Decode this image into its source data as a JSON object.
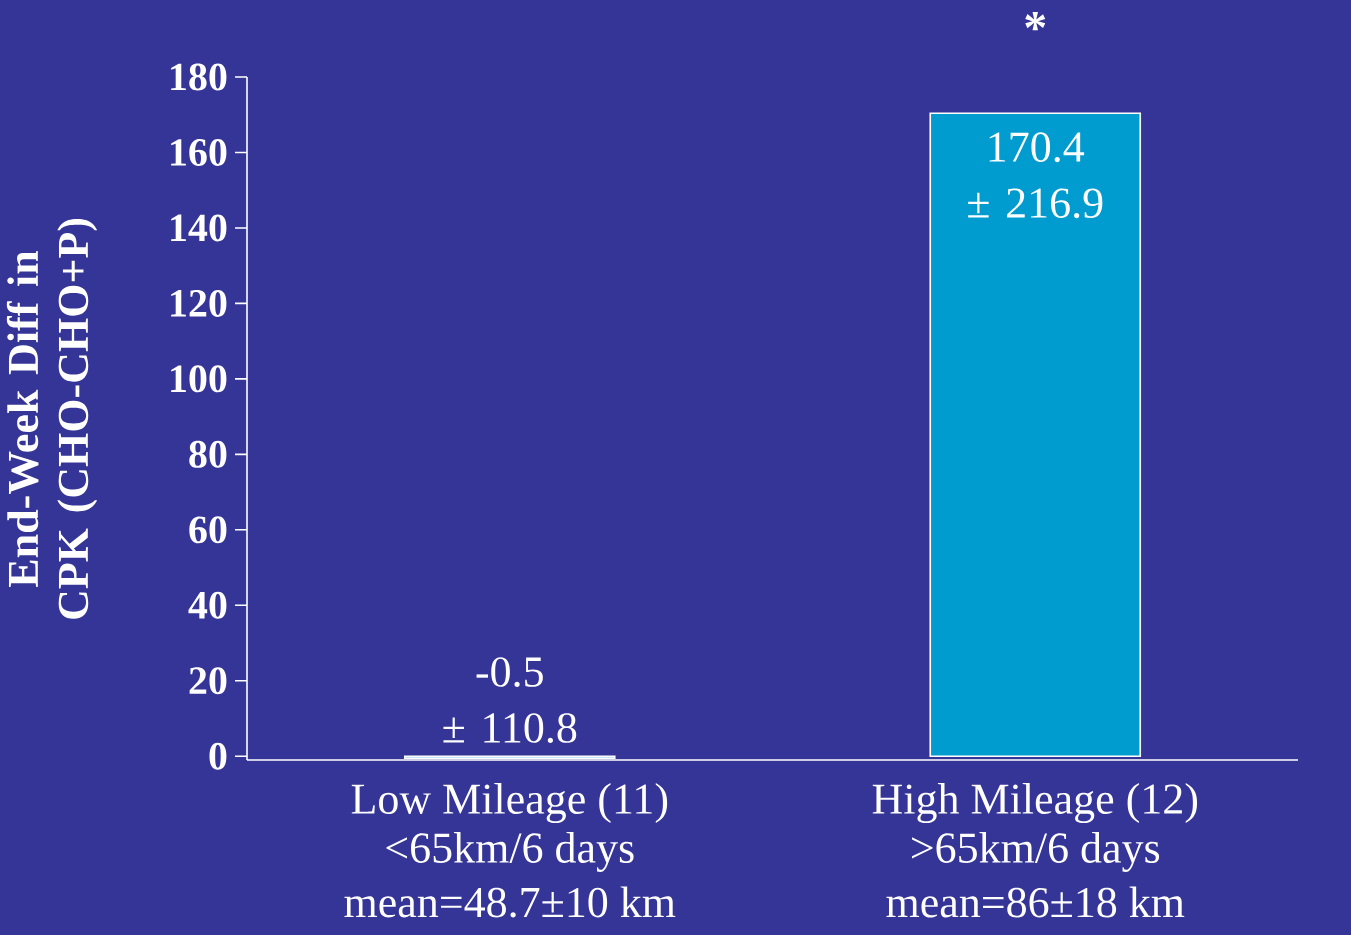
{
  "chart_data": {
    "type": "bar",
    "ylabel": "End-Week Diff in CPK (CHO-CHO+P)",
    "categories": [
      "Low Mileage (11)",
      "High Mileage (12)"
    ],
    "values": [
      -0.5,
      170.4
    ],
    "value_labels": [
      "-0.5 ± 110.8",
      "170.4 ± 216.9"
    ],
    "color": "#009ccf",
    "ylim": [
      -1,
      180
    ],
    "yticks": [
      0,
      20,
      40,
      60,
      80,
      100,
      120,
      140,
      160,
      180
    ],
    "annotations": [
      "<65km/6 days",
      "mean=48.7±10 km",
      ">65km/6 days",
      "mean=86±18 km",
      "*"
    ],
    "grid": false
  }
}
